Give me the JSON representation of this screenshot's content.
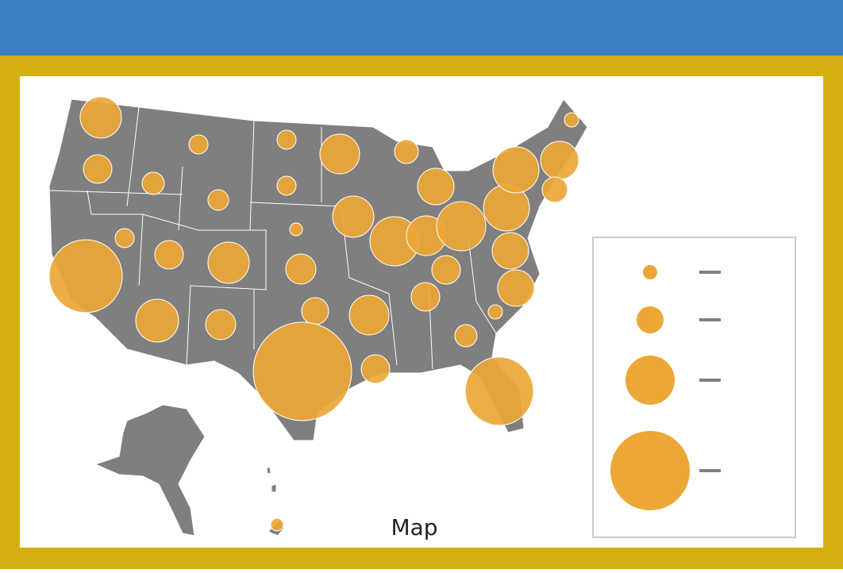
{
  "caption": "Map"
}
